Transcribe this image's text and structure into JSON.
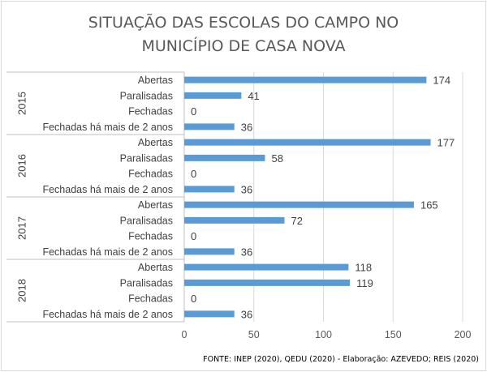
{
  "chart_data": {
    "type": "bar",
    "orientation": "horizontal",
    "title_lines": [
      "SITUAÇÃO DAS ESCOLAS DO CAMPO NO",
      "MUNICÍPIO DE CASA NOVA"
    ],
    "groups": [
      {
        "year": "2015",
        "items": [
          {
            "label": "Abertas",
            "value": 174
          },
          {
            "label": "Paralisadas",
            "value": 41
          },
          {
            "label": "Fechadas",
            "value": 0
          },
          {
            "label": "Fechadas há mais de 2 anos",
            "value": 36
          }
        ]
      },
      {
        "year": "2016",
        "items": [
          {
            "label": "Abertas",
            "value": 177
          },
          {
            "label": "Paralisadas",
            "value": 58
          },
          {
            "label": "Fechadas",
            "value": 0
          },
          {
            "label": "Fechadas há mais de 2 anos",
            "value": 36
          }
        ]
      },
      {
        "year": "2017",
        "items": [
          {
            "label": "Abertas",
            "value": 165
          },
          {
            "label": "Paralisadas",
            "value": 72
          },
          {
            "label": "Fechadas",
            "value": 0
          },
          {
            "label": "Fechadas há mais de 2 anos",
            "value": 36
          }
        ]
      },
      {
        "year": "2018",
        "items": [
          {
            "label": "Abertas",
            "value": 118
          },
          {
            "label": "Paralisadas",
            "value": 119
          },
          {
            "label": "Fechadas",
            "value": 0
          },
          {
            "label": "Fechadas há mais de 2 anos",
            "value": 36
          }
        ]
      }
    ],
    "xlim": [
      0,
      200
    ],
    "xticks": [
      "0",
      "50",
      "100",
      "150",
      "200"
    ],
    "grid": true,
    "bar_color": "#5b9bd5",
    "source": "FONTE: INEP (2020),  QEDU (2020)  - Elaboração: AZEVEDO; REIS (2020)"
  }
}
